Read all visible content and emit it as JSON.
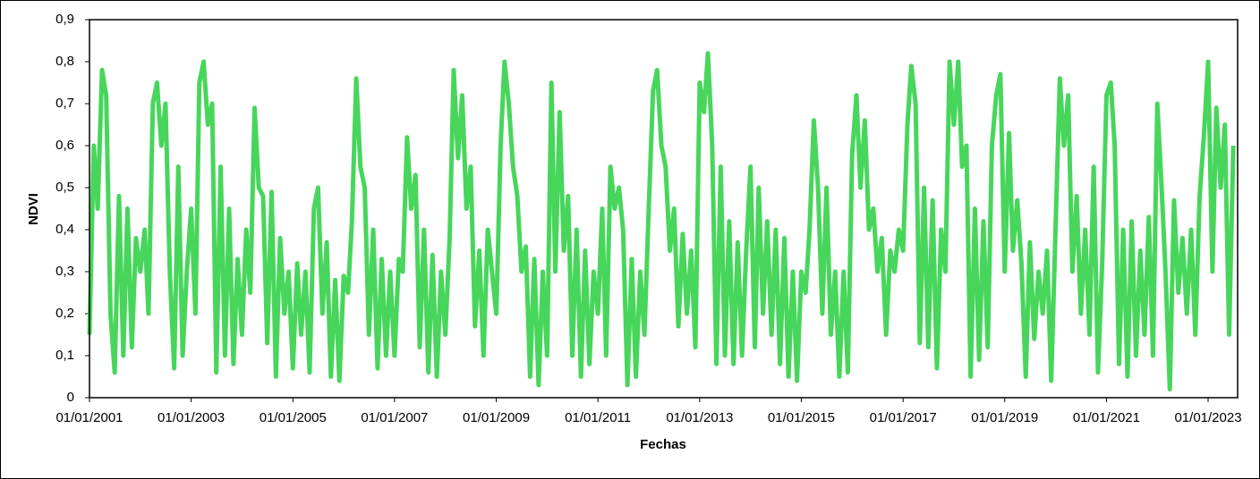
{
  "chart_data": {
    "type": "line",
    "y_label": "NDVI",
    "x_label": "Fechas",
    "color": "#47d65b",
    "xlim": [
      "01/01/2001",
      "01/08/2023"
    ],
    "xticks": [
      "01/01/2001",
      "01/01/2003",
      "01/01/2005",
      "01/01/2007",
      "01/01/2009",
      "01/01/2011",
      "01/01/2013",
      "01/01/2015",
      "01/01/2017",
      "01/01/2019",
      "01/01/2021",
      "01/01/2023"
    ],
    "ylim": [
      0,
      0.9
    ],
    "yticks": [
      0,
      {
        "value": 0.1,
        "label": "0,1"
      },
      {
        "value": 0.2,
        "label": "0,2"
      },
      {
        "value": 0.3,
        "label": "0,3"
      },
      {
        "value": 0.4,
        "label": "0,4"
      },
      {
        "value": 0.5,
        "label": "0,5"
      },
      {
        "value": 0.6,
        "label": "0,6"
      },
      {
        "value": 0.7,
        "label": "0,7"
      },
      {
        "value": 0.8,
        "label": "0,8"
      },
      {
        "value": 0.9,
        "label": "0,9"
      }
    ],
    "x": [
      "01/01/2001",
      "01/02/2001",
      "01/03/2001",
      "01/04/2001",
      "01/05/2001",
      "01/06/2001",
      "01/07/2001",
      "01/08/2001",
      "01/09/2001",
      "01/10/2001",
      "01/11/2001",
      "01/12/2001",
      "01/01/2002",
      "01/02/2002",
      "01/03/2002",
      "01/04/2002",
      "01/05/2002",
      "01/06/2002",
      "01/07/2002",
      "01/08/2002",
      "01/09/2002",
      "01/10/2002",
      "01/11/2002",
      "01/12/2002",
      "01/01/2003",
      "01/02/2003",
      "01/03/2003",
      "01/04/2003",
      "01/05/2003",
      "01/06/2003",
      "01/07/2003",
      "01/08/2003",
      "01/09/2003",
      "01/10/2003",
      "01/11/2003",
      "01/12/2003",
      "01/01/2004",
      "01/02/2004",
      "01/03/2004",
      "01/04/2004",
      "01/05/2004",
      "01/06/2004",
      "01/07/2004",
      "01/08/2004",
      "01/09/2004",
      "01/10/2004",
      "01/11/2004",
      "01/12/2004",
      "01/01/2005",
      "01/02/2005",
      "01/03/2005",
      "01/04/2005",
      "01/05/2005",
      "01/06/2005",
      "01/07/2005",
      "01/08/2005",
      "01/09/2005",
      "01/10/2005",
      "01/11/2005",
      "01/12/2005",
      "01/01/2006",
      "01/02/2006",
      "01/03/2006",
      "01/04/2006",
      "01/05/2006",
      "01/06/2006",
      "01/07/2006",
      "01/08/2006",
      "01/09/2006",
      "01/10/2006",
      "01/11/2006",
      "01/12/2006",
      "01/01/2007",
      "01/02/2007",
      "01/03/2007",
      "01/04/2007",
      "01/05/2007",
      "01/06/2007",
      "01/07/2007",
      "01/08/2007",
      "01/09/2007",
      "01/10/2007",
      "01/11/2007",
      "01/12/2007",
      "01/01/2008",
      "01/02/2008",
      "01/03/2008",
      "01/04/2008",
      "01/05/2008",
      "01/06/2008",
      "01/07/2008",
      "01/08/2008",
      "01/09/2008",
      "01/10/2008",
      "01/11/2008",
      "01/12/2008",
      "01/01/2009",
      "01/02/2009",
      "01/03/2009",
      "01/04/2009",
      "01/05/2009",
      "01/06/2009",
      "01/07/2009",
      "01/08/2009",
      "01/09/2009",
      "01/10/2009",
      "01/11/2009",
      "01/12/2009",
      "01/01/2010",
      "01/02/2010",
      "01/03/2010",
      "01/04/2010",
      "01/05/2010",
      "01/06/2010",
      "01/07/2010",
      "01/08/2010",
      "01/09/2010",
      "01/10/2010",
      "01/11/2010",
      "01/12/2010",
      "01/01/2011",
      "01/02/2011",
      "01/03/2011",
      "01/04/2011",
      "01/05/2011",
      "01/06/2011",
      "01/07/2011",
      "01/08/2011",
      "01/09/2011",
      "01/10/2011",
      "01/11/2011",
      "01/12/2011",
      "01/01/2012",
      "01/02/2012",
      "01/03/2012",
      "01/04/2012",
      "01/05/2012",
      "01/06/2012",
      "01/07/2012",
      "01/08/2012",
      "01/09/2012",
      "01/10/2012",
      "01/11/2012",
      "01/12/2012",
      "01/01/2013",
      "01/02/2013",
      "01/03/2013",
      "01/04/2013",
      "01/05/2013",
      "01/06/2013",
      "01/07/2013",
      "01/08/2013",
      "01/09/2013",
      "01/10/2013",
      "01/11/2013",
      "01/12/2013",
      "01/01/2014",
      "01/02/2014",
      "01/03/2014",
      "01/04/2014",
      "01/05/2014",
      "01/06/2014",
      "01/07/2014",
      "01/08/2014",
      "01/09/2014",
      "01/10/2014",
      "01/11/2014",
      "01/12/2014",
      "01/01/2015",
      "01/02/2015",
      "01/03/2015",
      "01/04/2015",
      "01/05/2015",
      "01/06/2015",
      "01/07/2015",
      "01/08/2015",
      "01/09/2015",
      "01/10/2015",
      "01/11/2015",
      "01/12/2015",
      "01/01/2016",
      "01/02/2016",
      "01/03/2016",
      "01/04/2016",
      "01/05/2016",
      "01/06/2016",
      "01/07/2016",
      "01/08/2016",
      "01/09/2016",
      "01/10/2016",
      "01/11/2016",
      "01/12/2016",
      "01/01/2017",
      "01/02/2017",
      "01/03/2017",
      "01/04/2017",
      "01/05/2017",
      "01/06/2017",
      "01/07/2017",
      "01/08/2017",
      "01/09/2017",
      "01/10/2017",
      "01/11/2017",
      "01/12/2017",
      "01/01/2018",
      "01/02/2018",
      "01/03/2018",
      "01/04/2018",
      "01/05/2018",
      "01/06/2018",
      "01/07/2018",
      "01/08/2018",
      "01/09/2018",
      "01/10/2018",
      "01/11/2018",
      "01/12/2018",
      "01/01/2019",
      "01/02/2019",
      "01/03/2019",
      "01/04/2019",
      "01/05/2019",
      "01/06/2019",
      "01/07/2019",
      "01/08/2019",
      "01/09/2019",
      "01/10/2019",
      "01/11/2019",
      "01/12/2019",
      "01/01/2020",
      "01/02/2020",
      "01/03/2020",
      "01/04/2020",
      "01/05/2020",
      "01/06/2020",
      "01/07/2020",
      "01/08/2020",
      "01/09/2020",
      "01/10/2020",
      "01/11/2020",
      "01/12/2020",
      "01/01/2021",
      "01/02/2021",
      "01/03/2021",
      "01/04/2021",
      "01/05/2021",
      "01/06/2021",
      "01/07/2021",
      "01/08/2021",
      "01/09/2021",
      "01/10/2021",
      "01/11/2021",
      "01/12/2021",
      "01/01/2022",
      "01/02/2022",
      "01/03/2022",
      "01/04/2022",
      "01/05/2022",
      "01/06/2022",
      "01/07/2022",
      "01/08/2022",
      "01/09/2022",
      "01/10/2022",
      "01/11/2022",
      "01/12/2022",
      "01/01/2023",
      "01/02/2023",
      "01/03/2023",
      "01/04/2023",
      "01/05/2023",
      "01/06/2023",
      "01/07/2023"
    ],
    "values": [
      0.15,
      0.6,
      0.45,
      0.78,
      0.72,
      0.2,
      0.06,
      0.48,
      0.1,
      0.45,
      0.12,
      0.38,
      0.3,
      0.4,
      0.2,
      0.7,
      0.75,
      0.6,
      0.7,
      0.3,
      0.07,
      0.55,
      0.1,
      0.3,
      0.45,
      0.2,
      0.75,
      0.8,
      0.65,
      0.7,
      0.06,
      0.55,
      0.1,
      0.45,
      0.08,
      0.33,
      0.15,
      0.4,
      0.25,
      0.69,
      0.5,
      0.48,
      0.13,
      0.49,
      0.05,
      0.38,
      0.2,
      0.3,
      0.07,
      0.32,
      0.15,
      0.3,
      0.06,
      0.45,
      0.5,
      0.2,
      0.37,
      0.05,
      0.28,
      0.04,
      0.29,
      0.25,
      0.42,
      0.76,
      0.55,
      0.5,
      0.15,
      0.4,
      0.07,
      0.33,
      0.1,
      0.3,
      0.1,
      0.33,
      0.3,
      0.62,
      0.45,
      0.53,
      0.12,
      0.4,
      0.06,
      0.34,
      0.05,
      0.3,
      0.15,
      0.38,
      0.78,
      0.57,
      0.72,
      0.45,
      0.55,
      0.17,
      0.35,
      0.1,
      0.4,
      0.3,
      0.2,
      0.6,
      0.8,
      0.7,
      0.55,
      0.48,
      0.3,
      0.36,
      0.05,
      0.33,
      0.03,
      0.3,
      0.1,
      0.75,
      0.3,
      0.68,
      0.35,
      0.48,
      0.1,
      0.4,
      0.05,
      0.35,
      0.08,
      0.3,
      0.2,
      0.45,
      0.1,
      0.55,
      0.45,
      0.5,
      0.4,
      0.03,
      0.33,
      0.05,
      0.3,
      0.15,
      0.45,
      0.73,
      0.78,
      0.6,
      0.55,
      0.35,
      0.45,
      0.17,
      0.39,
      0.2,
      0.35,
      0.12,
      0.75,
      0.68,
      0.82,
      0.6,
      0.08,
      0.55,
      0.1,
      0.42,
      0.08,
      0.37,
      0.1,
      0.35,
      0.55,
      0.12,
      0.5,
      0.2,
      0.42,
      0.15,
      0.4,
      0.08,
      0.38,
      0.05,
      0.3,
      0.04,
      0.3,
      0.25,
      0.4,
      0.66,
      0.5,
      0.2,
      0.5,
      0.15,
      0.3,
      0.05,
      0.3,
      0.06,
      0.58,
      0.72,
      0.5,
      0.66,
      0.4,
      0.45,
      0.3,
      0.38,
      0.15,
      0.35,
      0.3,
      0.4,
      0.35,
      0.65,
      0.79,
      0.7,
      0.13,
      0.5,
      0.12,
      0.47,
      0.07,
      0.4,
      0.3,
      0.8,
      0.65,
      0.8,
      0.55,
      0.6,
      0.05,
      0.45,
      0.09,
      0.42,
      0.12,
      0.6,
      0.72,
      0.77,
      0.3,
      0.63,
      0.35,
      0.47,
      0.32,
      0.05,
      0.37,
      0.14,
      0.3,
      0.2,
      0.35,
      0.04,
      0.4,
      0.76,
      0.6,
      0.72,
      0.3,
      0.48,
      0.2,
      0.4,
      0.15,
      0.55,
      0.06,
      0.32,
      0.72,
      0.75,
      0.6,
      0.08,
      0.4,
      0.05,
      0.42,
      0.1,
      0.35,
      0.15,
      0.43,
      0.1,
      0.7,
      0.5,
      0.3,
      0.02,
      0.47,
      0.25,
      0.38,
      0.2,
      0.4,
      0.15,
      0.48,
      0.62,
      0.8,
      0.3,
      0.69,
      0.5,
      0.65,
      0.15,
      0.6
    ]
  }
}
